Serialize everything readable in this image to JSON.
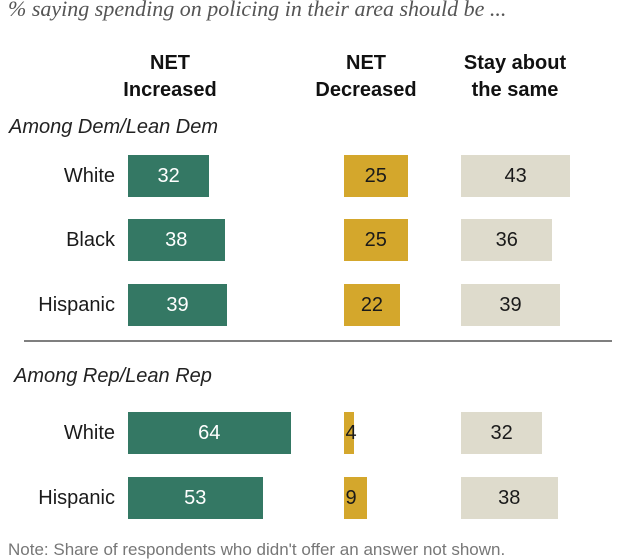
{
  "subtitle": "% saying spending on policing in their area should be ...",
  "columns": [
    {
      "line1": "NET",
      "line2": "Increased"
    },
    {
      "line1": "NET",
      "line2": "Decreased"
    },
    {
      "line1": "Stay about",
      "line2": "the same"
    }
  ],
  "note": "Note: Share of respondents who didn't offer an answer not shown.",
  "colors": {
    "increased": "#347864",
    "decreased": "#d4a72c",
    "same": "#dedbcc",
    "increased_text": "#ffffff",
    "decreased_text": "#1a1a1a",
    "same_text": "#1a1a1a"
  },
  "chart_data": {
    "type": "bar",
    "series_names": [
      "NET Increased",
      "NET Decreased",
      "Stay about the same"
    ],
    "groups": [
      {
        "label": "Among Dem/Lean Dem",
        "rows": [
          {
            "label": "White",
            "values": [
              32,
              25,
              43
            ]
          },
          {
            "label": "Black",
            "values": [
              38,
              25,
              36
            ]
          },
          {
            "label": "Hispanic",
            "values": [
              39,
              22,
              39
            ]
          }
        ]
      },
      {
        "label": "Among Rep/Lean Rep",
        "rows": [
          {
            "label": "White",
            "values": [
              64,
              4,
              32
            ]
          },
          {
            "label": "Hispanic",
            "values": [
              53,
              9,
              38
            ]
          }
        ]
      }
    ]
  }
}
